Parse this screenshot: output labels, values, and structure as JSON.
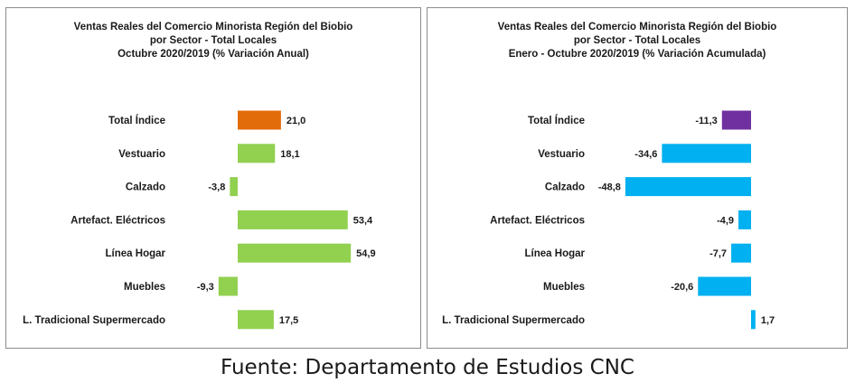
{
  "chart_data": [
    {
      "type": "bar",
      "orientation": "horizontal",
      "title": [
        "Ventas Reales del Comercio Minorista  Región del Biobio",
        "por Sector - Total Locales",
        "Octubre 2020/2019 (% Variación Anual)"
      ],
      "categories": [
        "Total Índice",
        "Vestuario",
        "Calzado",
        "Artefact. Eléctricos",
        "Línea Hogar",
        "Muebles",
        "L. Tradicional Supermercado"
      ],
      "values": [
        21.0,
        18.1,
        -3.8,
        53.4,
        54.9,
        -9.3,
        17.5
      ],
      "labels": [
        "21,0",
        "18,1",
        "-3,8",
        "53,4",
        "54,9",
        "-9,3",
        "17,5"
      ],
      "colors": [
        "#e36c0a",
        "#92d050",
        "#92d050",
        "#92d050",
        "#92d050",
        "#92d050",
        "#92d050"
      ],
      "grid": false,
      "legend": "none"
    },
    {
      "type": "bar",
      "orientation": "horizontal",
      "title": [
        "Ventas Reales del Comercio Minorista Región del Biobio",
        "por Sector - Total Locales",
        "Enero - Octubre  2020/2019 (% Variación Acumulada)"
      ],
      "categories": [
        "Total Índice",
        "Vestuario",
        "Calzado",
        "Artefact. Eléctricos",
        "Línea Hogar",
        "Muebles",
        "L. Tradicional Supermercado"
      ],
      "values": [
        -11.3,
        -34.6,
        -48.8,
        -4.9,
        -7.7,
        -20.6,
        1.7
      ],
      "labels": [
        "-11,3",
        "-34,6",
        "-48,8",
        "-4,9",
        "-7,7",
        "-20,6",
        "1,7"
      ],
      "colors": [
        "#7030a0",
        "#00b0f0",
        "#00b0f0",
        "#00b0f0",
        "#00b0f0",
        "#00b0f0",
        "#00b0f0"
      ],
      "grid": false,
      "legend": "none"
    }
  ],
  "source": "Fuente: Departamento de Estudios CNC"
}
